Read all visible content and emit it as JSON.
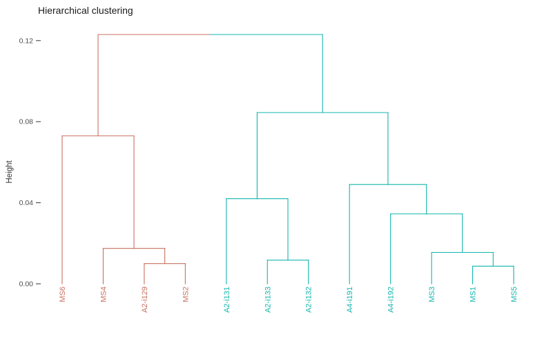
{
  "chart": {
    "title": "Hierarchical clustering",
    "ylabel": "Height"
  },
  "chart_data": {
    "type": "dendrogram",
    "orientation": "vertical",
    "title": "Hierarchical clustering",
    "xlabel": "",
    "ylabel": "Height",
    "ylim": [
      0,
      0.13
    ],
    "yticks": [
      0.0,
      0.04,
      0.08,
      0.12
    ],
    "grid": false,
    "legend": false,
    "axis_text_color": "#4d4d4d",
    "tick_mark_color": "#333333",
    "cluster_colors": {
      "cluster1": "#C8705F",
      "cluster2": "#12B5AC"
    },
    "leaves": [
      {
        "label": "MS6",
        "cluster": "cluster1"
      },
      {
        "label": "MS4",
        "cluster": "cluster1"
      },
      {
        "label": "A2-i129",
        "cluster": "cluster1"
      },
      {
        "label": "MS2",
        "cluster": "cluster1"
      },
      {
        "label": "A2-i131",
        "cluster": "cluster2"
      },
      {
        "label": "A2-i133",
        "cluster": "cluster2"
      },
      {
        "label": "A2-i132",
        "cluster": "cluster2"
      },
      {
        "label": "A4-i191",
        "cluster": "cluster2"
      },
      {
        "label": "A4-i192",
        "cluster": "cluster2"
      },
      {
        "label": "MS3",
        "cluster": "cluster2"
      },
      {
        "label": "MS1",
        "cluster": "cluster2"
      },
      {
        "label": "MS5",
        "cluster": "cluster2"
      }
    ],
    "merges": {
      "height": 0.123,
      "children": [
        {
          "height": 0.073,
          "children": [
            "MS6",
            {
              "height": 0.0175,
              "children": [
                "MS4",
                {
                  "height": 0.01,
                  "children": [
                    "A2-i129",
                    "MS2"
                  ]
                }
              ]
            }
          ]
        },
        {
          "height": 0.0845,
          "children": [
            {
              "height": 0.042,
              "children": [
                "A2-i131",
                {
                  "height": 0.0117,
                  "children": [
                    "A2-i133",
                    "A2-i132"
                  ]
                }
              ]
            },
            {
              "height": 0.049,
              "children": [
                "A4-i191",
                {
                  "height": 0.0345,
                  "children": [
                    "A4-i192",
                    {
                      "height": 0.0155,
                      "children": [
                        "MS3",
                        {
                          "height": 0.0087,
                          "children": [
                            "MS1",
                            "MS5"
                          ]
                        }
                      ]
                    }
                  ]
                }
              ]
            }
          ]
        }
      ]
    }
  }
}
